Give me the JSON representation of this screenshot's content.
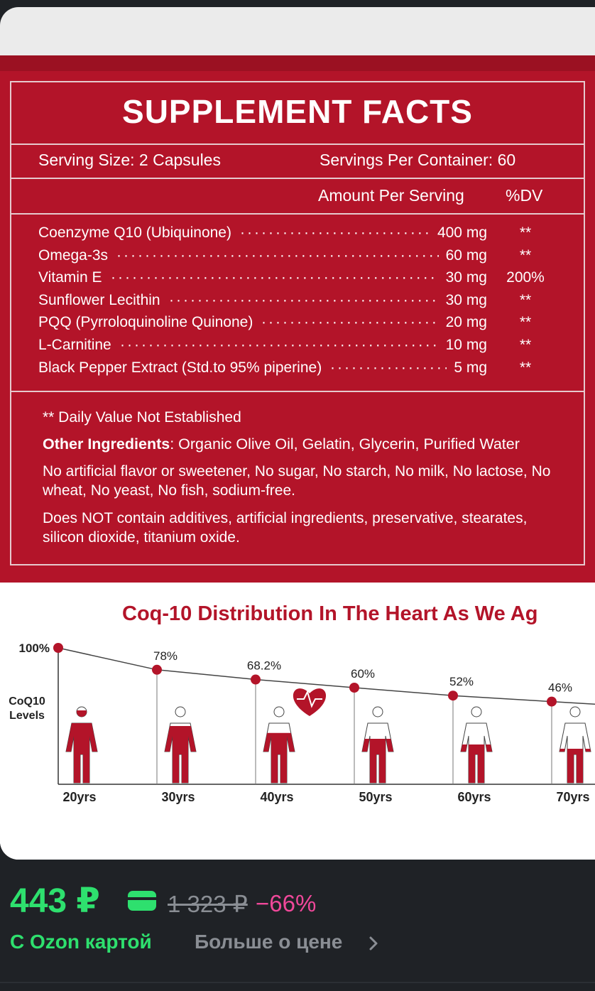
{
  "supplement": {
    "title": "SUPPLEMENT FACTS",
    "serving_size": "Serving Size: 2 Capsules",
    "servings_per_container": "Servings Per Container: 60",
    "amount_per_serving": "Amount Per Serving",
    "dv_header": "%DV",
    "ingredients": [
      {
        "name": "Coenzyme Q10 (Ubiquinone)",
        "amount": "400 mg",
        "dv": "**"
      },
      {
        "name": "Omega-3s",
        "amount": "60 mg",
        "dv": "**"
      },
      {
        "name": "Vitamin E",
        "amount": "30 mg",
        "dv": "200%"
      },
      {
        "name": "Sunflower Lecithin",
        "amount": "30 mg",
        "dv": "**"
      },
      {
        "name": "PQQ (Pyrroloquinoline Quinone)",
        "amount": "20 mg",
        "dv": "**"
      },
      {
        "name": "L-Carnitine",
        "amount": "10 mg",
        "dv": "**"
      },
      {
        "name": "Black Pepper Extract (Std.to 95% piperine)",
        "amount": "5 mg",
        "dv": "**"
      }
    ],
    "daily_value_note": "** Daily Value Not Established",
    "other_label": "Other Ingredients",
    "other_text": ": Organic Olive Oil, Gelatin, Glycerin, Purified Water",
    "no_list": "No artificial flavor or sweetener, No sugar, No starch, No milk, No lactose, No wheat, No yeast, No fish, sodium-free.",
    "not_contain": "Does NOT contain additives, artificial ingredients, preservative, stearates, silicon dioxide, titanium oxide."
  },
  "chart_data": {
    "type": "line",
    "title": "Coq-10 Distribution In The Heart As We Ag",
    "ylabel": "CoQ10 Levels",
    "ylim": [
      0,
      100
    ],
    "categories": [
      "20yrs",
      "30yrs",
      "40yrs",
      "50yrs",
      "60yrs",
      "70yrs"
    ],
    "values": [
      100,
      78,
      68.2,
      60,
      52,
      46
    ],
    "data_labels": [
      "100%",
      "78%",
      "68.2%",
      "60%",
      "52%",
      "46%"
    ],
    "color": "#b31429"
  },
  "price": {
    "current": "443 ₽",
    "old": "1 323 ₽",
    "discount": "−66%",
    "ozon_card": "С Ozon картой",
    "more": "Больше о цене",
    "accent": "#2ee06e",
    "discount_color": "#f0489a"
  }
}
